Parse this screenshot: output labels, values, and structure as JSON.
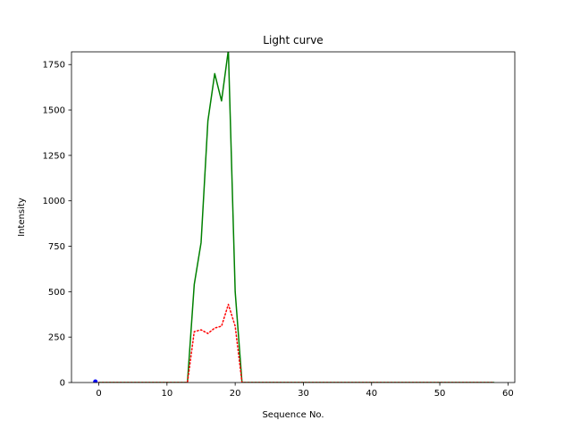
{
  "chart_data": {
    "type": "line",
    "title": "Light curve",
    "xlabel": "Sequence No.",
    "ylabel": "Intensity",
    "xlim": [
      -4,
      61
    ],
    "ylim": [
      0,
      1820
    ],
    "xticks": [
      0,
      10,
      20,
      30,
      40,
      50,
      60
    ],
    "yticks": [
      0,
      250,
      500,
      750,
      1000,
      1250,
      1500,
      1750
    ],
    "grid": false,
    "series": [
      {
        "color": "#008000",
        "style": "solid",
        "x": [
          0,
          1,
          2,
          3,
          4,
          5,
          6,
          7,
          8,
          9,
          10,
          11,
          12,
          13,
          14,
          15,
          16,
          17,
          18,
          19,
          20,
          21,
          22,
          23,
          24,
          25,
          26,
          27,
          28,
          29,
          30,
          31,
          32,
          33,
          34,
          35,
          36,
          37,
          38,
          39,
          40,
          41,
          42,
          43,
          44,
          45,
          46,
          47,
          48,
          49,
          50,
          51,
          52,
          53,
          54,
          55,
          56,
          57,
          58
        ],
        "y": [
          0,
          0,
          0,
          0,
          0,
          0,
          0,
          0,
          0,
          0,
          0,
          0,
          0,
          0,
          540,
          770,
          1440,
          1700,
          1550,
          1830,
          500,
          0,
          0,
          0,
          0,
          0,
          0,
          0,
          0,
          0,
          0,
          0,
          0,
          0,
          0,
          0,
          0,
          0,
          0,
          0,
          0,
          0,
          0,
          0,
          0,
          0,
          0,
          0,
          0,
          0,
          0,
          0,
          0,
          0,
          0,
          0,
          0,
          0,
          0
        ]
      },
      {
        "color": "#ff0000",
        "style": "dotted",
        "x": [
          0,
          13,
          14,
          15,
          16,
          17,
          18,
          19,
          20,
          21,
          58
        ],
        "y": [
          0,
          0,
          280,
          290,
          270,
          300,
          310,
          430,
          310,
          0,
          0
        ]
      },
      {
        "color": "#0000ff",
        "style": "marker",
        "x": [
          -0.5
        ],
        "y": [
          5
        ]
      }
    ]
  }
}
